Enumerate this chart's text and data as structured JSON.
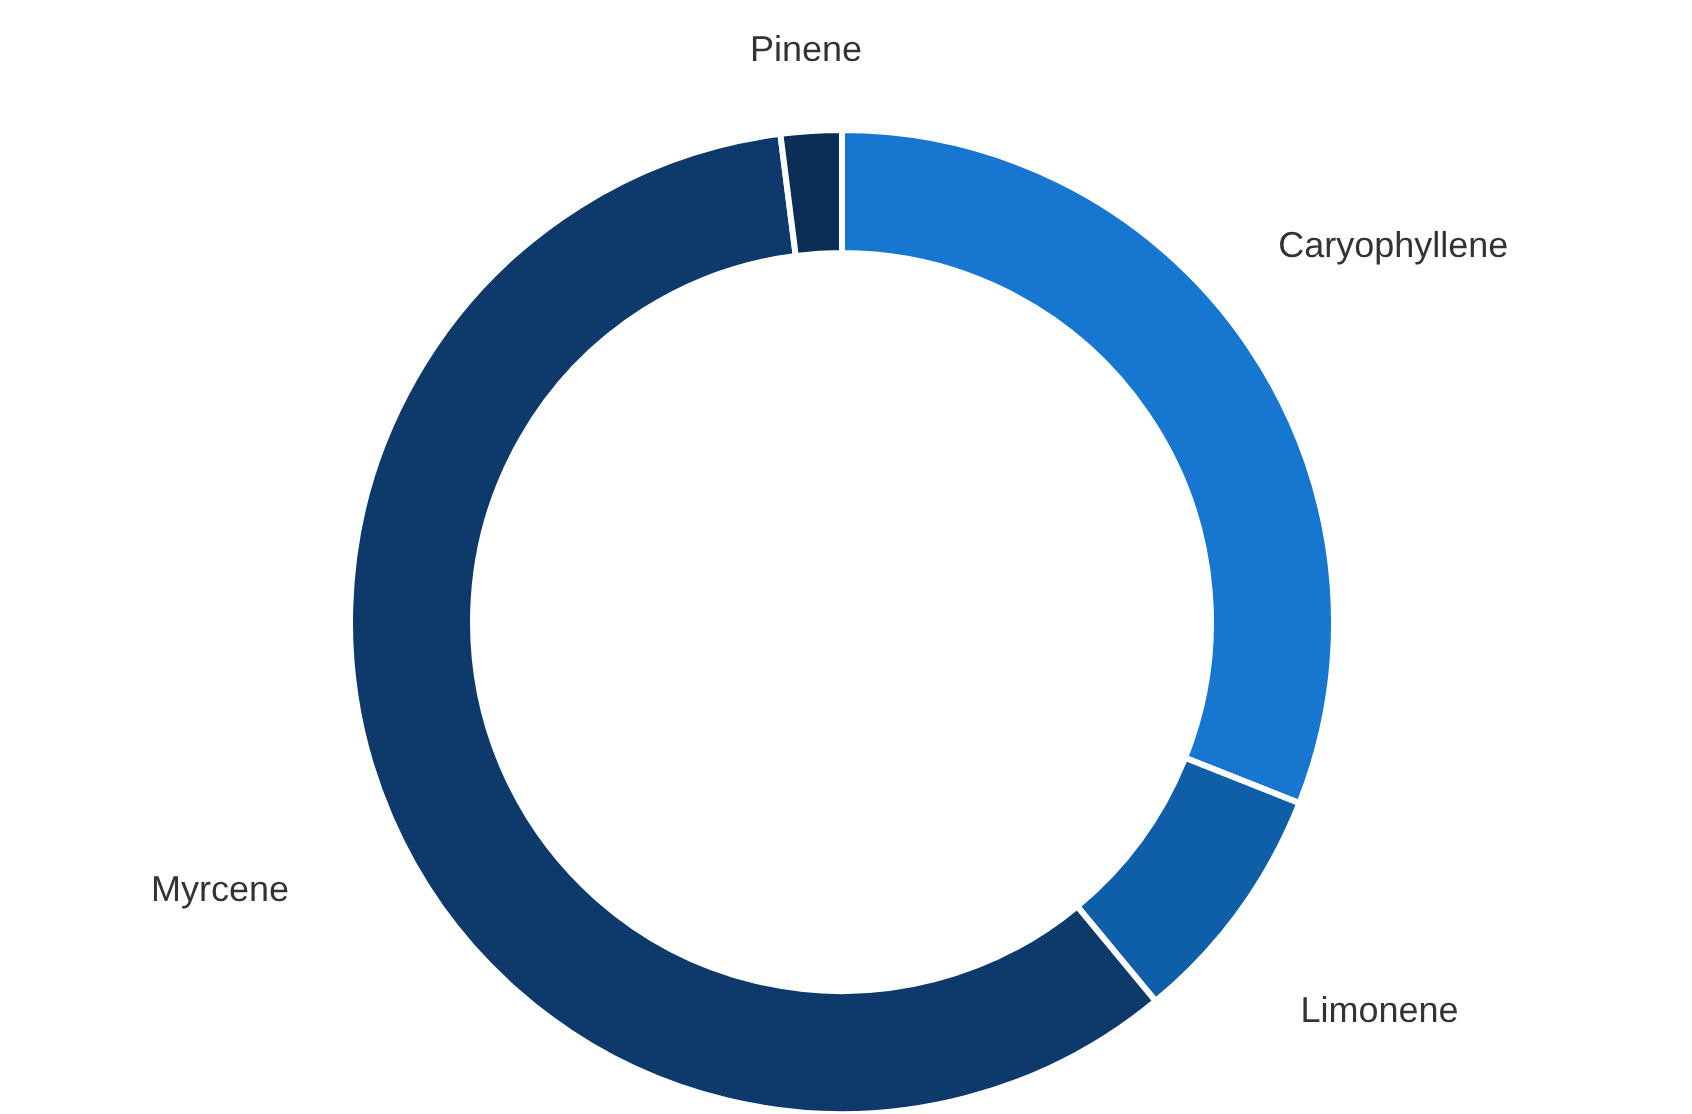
{
  "chart_data": {
    "type": "donut",
    "categories": [
      "Caryophyllene",
      "Limonene",
      "Myrcene",
      "Pinene"
    ],
    "values": [
      31,
      8,
      59,
      2
    ],
    "colors": [
      "#1777d0",
      "#0f5fa8",
      "#0d3a6b",
      "#0a2e55"
    ]
  }
}
